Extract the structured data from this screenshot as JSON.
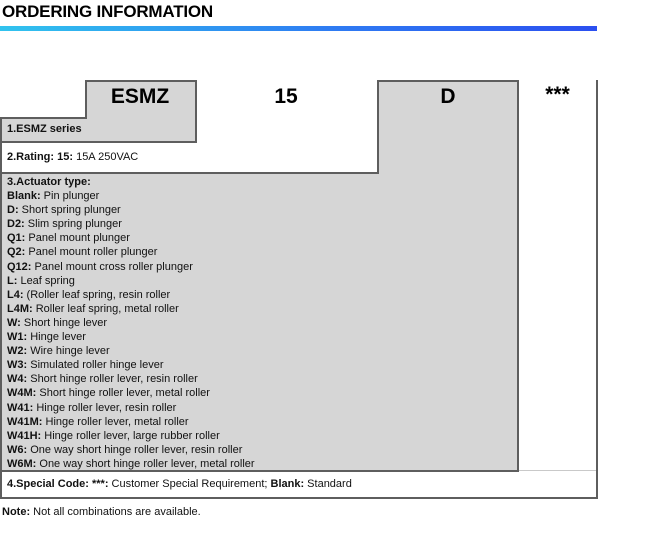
{
  "title": "ORDERING INFORMATION",
  "part_number": {
    "series": "ESMZ",
    "rating": "15",
    "actuator": "D",
    "special": "***"
  },
  "bands": {
    "series": {
      "label": "1.ESMZ series"
    },
    "rating": {
      "key": "2.Rating: 15:",
      "value": " 15A 250VAC"
    },
    "actuator": {
      "heading": "3.Actuator type:",
      "items": [
        {
          "code": "Blank:",
          "desc": " Pin plunger"
        },
        {
          "code": "D:",
          "desc": " Short spring plunger"
        },
        {
          "code": "D2:",
          "desc": " Slim spring plunger"
        },
        {
          "code": "Q1:",
          "desc": " Panel mount plunger"
        },
        {
          "code": "Q2:",
          "desc": " Panel mount roller plunger"
        },
        {
          "code": "Q12:",
          "desc": " Panel mount cross roller plunger"
        },
        {
          "code": "L:",
          "desc": " Leaf spring"
        },
        {
          "code": "L4:",
          "desc": " (Roller leaf spring, resin roller"
        },
        {
          "code": "L4M:",
          "desc": " Roller leaf spring, metal roller"
        },
        {
          "code": "W:",
          "desc": " Short hinge lever"
        },
        {
          "code": "W1:",
          "desc": " Hinge lever"
        },
        {
          "code": "W2:",
          "desc": " Wire hinge lever"
        },
        {
          "code": "W3:",
          "desc": " Simulated roller hinge lever"
        },
        {
          "code": "W4:",
          "desc": " Short hinge roller lever, resin roller"
        },
        {
          "code": "W4M:",
          "desc": " Short hinge roller lever, metal roller"
        },
        {
          "code": "W41:",
          "desc": " Hinge roller lever, resin roller"
        },
        {
          "code": "W41M:",
          "desc": " Hinge roller lever, metal roller"
        },
        {
          "code": "W41H:",
          "desc": " Hinge roller lever, large rubber roller"
        },
        {
          "code": "W6:",
          "desc": " One way short hinge roller lever, resin roller"
        },
        {
          "code": "W6M:",
          "desc": " One way short hinge roller lever, metal roller"
        }
      ]
    },
    "special": {
      "key": "4.Special Code: ***:",
      "mid": " Customer Special Requirement; ",
      "blank_key": "Blank:",
      "rest": " Standard"
    }
  },
  "note": {
    "key": "Note:",
    "rest": " Not all combinations are available."
  },
  "colors": {
    "accent_gradient_start": "#31c3ee",
    "accent_gradient_end": "#2b4ff0",
    "band_fill": "#d6d6d6",
    "border": "#5e5e5e"
  }
}
